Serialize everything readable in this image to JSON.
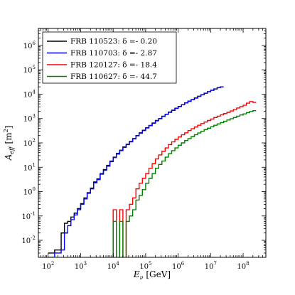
{
  "chart_data": {
    "type": "line",
    "step": true,
    "xlabel": "E_ν [GeV]",
    "ylabel": "A_eff [m²]",
    "x_scale": "log",
    "y_scale": "log",
    "xlim": [
      50,
      500000000
    ],
    "ylim": [
      0.002,
      5000000
    ],
    "grid": false,
    "legend_position": "top-left",
    "x_ticks": [
      {
        "value": 100,
        "base": "10",
        "exp": "2"
      },
      {
        "value": 1000,
        "base": "10",
        "exp": "3"
      },
      {
        "value": 10000,
        "base": "10",
        "exp": "4"
      },
      {
        "value": 100000,
        "base": "10",
        "exp": "5"
      },
      {
        "value": 1000000,
        "base": "10",
        "exp": "6"
      },
      {
        "value": 10000000,
        "base": "10",
        "exp": "7"
      },
      {
        "value": 100000000,
        "base": "10",
        "exp": "8"
      }
    ],
    "y_ticks": [
      {
        "value": 0.01,
        "base": "10",
        "exp": "-2"
      },
      {
        "value": 0.1,
        "base": "10",
        "exp": "-1"
      },
      {
        "value": 1,
        "base": "10",
        "exp": "0"
      },
      {
        "value": 10,
        "base": "10",
        "exp": "1"
      },
      {
        "value": 100,
        "base": "10",
        "exp": "2"
      },
      {
        "value": 1000,
        "base": "10",
        "exp": "3"
      },
      {
        "value": 10000,
        "base": "10",
        "exp": "4"
      },
      {
        "value": 100000,
        "base": "10",
        "exp": "5"
      },
      {
        "value": 1000000,
        "base": "10",
        "exp": "6"
      }
    ],
    "series": [
      {
        "name": "FRB 110523: δ =- 0.20",
        "color": "#000000",
        "log10_x_start": 2.0,
        "log10_x_step": 0.1,
        "values": [
          0.003,
          0.003,
          0.004,
          0.004,
          0.02,
          0.05,
          0.06,
          0.09,
          0.13,
          0.2,
          0.32,
          0.55,
          0.9,
          1.4,
          2.5,
          3.3,
          5.5,
          8,
          12,
          18,
          26,
          37,
          50,
          68,
          88,
          115,
          150,
          200,
          260,
          330,
          420,
          520,
          660,
          830,
          1000,
          1250,
          1500,
          1850,
          2200,
          2650,
          3150,
          3700,
          4400,
          5200,
          6000,
          7000,
          8200,
          9500,
          11000,
          12700,
          14500,
          16500,
          18500,
          20000
        ]
      },
      {
        "name": "FRB 110703: δ =- 2.87",
        "color": "#0000ff",
        "log10_x_start": 2.0,
        "log10_x_step": 0.1,
        "values": [
          0.002,
          0.002,
          0.003,
          0.003,
          0.004,
          0.02,
          0.04,
          0.07,
          0.11,
          0.18,
          0.3,
          0.5,
          0.85,
          1.3,
          2.3,
          3.1,
          5.2,
          7.5,
          11,
          17,
          25,
          35,
          48,
          65,
          85,
          110,
          145,
          195,
          250,
          320,
          410,
          510,
          640,
          810,
          980,
          1220,
          1480,
          1800,
          2150,
          2600,
          3100,
          3650,
          4350,
          5100,
          5900,
          6900,
          8100,
          9400,
          10900,
          12600,
          14400,
          16300,
          18300,
          20000
        ]
      },
      {
        "name": "FRB 120127: δ =- 18.4",
        "color": "#ff0000",
        "log10_x_start": 3.9,
        "log10_x_step": 0.1,
        "values": [
          0.0015,
          0.18,
          0.0015,
          0.18,
          0.0015,
          0.18,
          0.3,
          0.55,
          1.3,
          2.2,
          3.5,
          5.5,
          9,
          14,
          22,
          32,
          45,
          62,
          85,
          110,
          140,
          175,
          215,
          260,
          320,
          380,
          450,
          530,
          620,
          720,
          830,
          950,
          1100,
          1250,
          1420,
          1600,
          1800,
          2050,
          2350,
          2700,
          3100,
          3500,
          4300,
          5000,
          4600
        ]
      },
      {
        "name": "FRB 110627: δ =- 44.7",
        "color": "#008000",
        "log10_x_start": 3.9,
        "log10_x_step": 0.1,
        "values": [
          0.0015,
          0.06,
          0.0015,
          0.06,
          0.0015,
          0.06,
          0.1,
          0.18,
          0.45,
          0.7,
          1.2,
          2.2,
          3.5,
          5.5,
          9,
          13,
          18,
          26,
          36,
          48,
          62,
          80,
          100,
          125,
          150,
          180,
          215,
          255,
          300,
          350,
          400,
          460,
          530,
          600,
          680,
          770,
          870,
          980,
          1100,
          1250,
          1400,
          1550,
          1750,
          1950,
          2100
        ]
      }
    ]
  }
}
